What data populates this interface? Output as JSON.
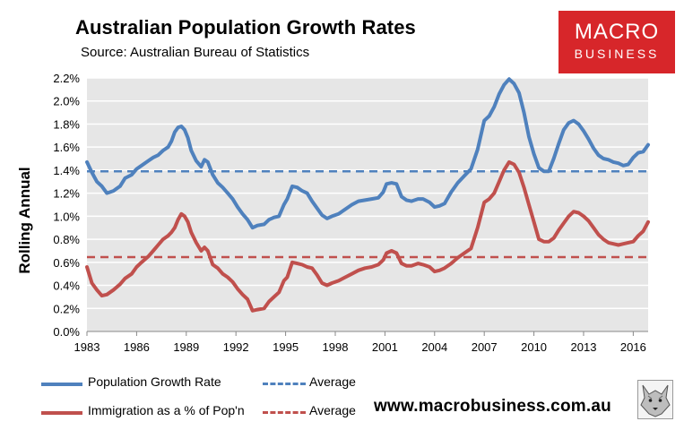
{
  "header": {
    "title": "Australian Population Growth Rates",
    "source": "Source: Australian Bureau of Statistics"
  },
  "logo": {
    "line1": "MACRO",
    "line2": "BUSINESS",
    "color": "#d7262a"
  },
  "footer": {
    "website": "www.macrobusiness.com.au"
  },
  "legend": {
    "population_label": "Population Growth Rate",
    "population_avg_label": "Average",
    "immigration_label": "Immigration as a % of Pop'n",
    "immigration_avg_label": "Average"
  },
  "colors": {
    "population": "#4f81bd",
    "immigration": "#c0504d",
    "plot_bg": "#e6e6e6"
  },
  "chart_data": {
    "type": "line",
    "title": "Australian Population Growth Rates",
    "ylabel": "Rolling Annual",
    "xlabel": "",
    "ylim": [
      0,
      2.2
    ],
    "xlim": [
      1983,
      2016.9
    ],
    "y_ticks": [
      0,
      0.2,
      0.4,
      0.6,
      0.8,
      1.0,
      1.2,
      1.4,
      1.6,
      1.8,
      2.0,
      2.2
    ],
    "y_tick_labels": [
      "0.0%",
      "0.2%",
      "0.4%",
      "0.6%",
      "0.8%",
      "1.0%",
      "1.2%",
      "1.4%",
      "1.6%",
      "1.8%",
      "2.0%",
      "2.2%"
    ],
    "x_ticks": [
      1983,
      1986,
      1989,
      1992,
      1995,
      1998,
      2001,
      2004,
      2007,
      2010,
      2013,
      2016
    ],
    "x_tick_labels": [
      "1983",
      "1986",
      "1989",
      "1992",
      "1995",
      "1998",
      "2001",
      "2004",
      "2007",
      "2010",
      "2013",
      "2016"
    ],
    "grid": true,
    "series": [
      {
        "name": "Population Growth Rate",
        "color": "#4f81bd",
        "average": 1.39,
        "points": [
          [
            1983.0,
            1.47
          ],
          [
            1983.3,
            1.38
          ],
          [
            1983.6,
            1.3
          ],
          [
            1983.9,
            1.26
          ],
          [
            1984.2,
            1.2
          ],
          [
            1984.6,
            1.22
          ],
          [
            1985.0,
            1.26
          ],
          [
            1985.3,
            1.33
          ],
          [
            1985.7,
            1.36
          ],
          [
            1986.0,
            1.41
          ],
          [
            1986.3,
            1.44
          ],
          [
            1986.7,
            1.48
          ],
          [
            1987.0,
            1.51
          ],
          [
            1987.3,
            1.53
          ],
          [
            1987.6,
            1.57
          ],
          [
            1987.9,
            1.6
          ],
          [
            1988.1,
            1.65
          ],
          [
            1988.3,
            1.73
          ],
          [
            1988.5,
            1.77
          ],
          [
            1988.7,
            1.78
          ],
          [
            1988.9,
            1.75
          ],
          [
            1989.1,
            1.68
          ],
          [
            1989.3,
            1.57
          ],
          [
            1989.6,
            1.48
          ],
          [
            1989.9,
            1.43
          ],
          [
            1990.1,
            1.49
          ],
          [
            1990.3,
            1.47
          ],
          [
            1990.6,
            1.36
          ],
          [
            1990.9,
            1.29
          ],
          [
            1991.2,
            1.25
          ],
          [
            1991.5,
            1.2
          ],
          [
            1991.8,
            1.15
          ],
          [
            1992.1,
            1.08
          ],
          [
            1992.4,
            1.02
          ],
          [
            1992.7,
            0.97
          ],
          [
            1993.0,
            0.9
          ],
          [
            1993.3,
            0.92
          ],
          [
            1993.7,
            0.93
          ],
          [
            1994.0,
            0.97
          ],
          [
            1994.3,
            0.99
          ],
          [
            1994.6,
            1.0
          ],
          [
            1994.9,
            1.1
          ],
          [
            1995.1,
            1.15
          ],
          [
            1995.4,
            1.26
          ],
          [
            1995.7,
            1.25
          ],
          [
            1996.0,
            1.22
          ],
          [
            1996.3,
            1.2
          ],
          [
            1996.6,
            1.13
          ],
          [
            1996.9,
            1.07
          ],
          [
            1997.2,
            1.01
          ],
          [
            1997.5,
            0.98
          ],
          [
            1997.8,
            1.0
          ],
          [
            1998.2,
            1.02
          ],
          [
            1998.6,
            1.06
          ],
          [
            1999.0,
            1.1
          ],
          [
            1999.4,
            1.13
          ],
          [
            1999.8,
            1.14
          ],
          [
            2000.2,
            1.15
          ],
          [
            2000.6,
            1.16
          ],
          [
            2000.9,
            1.21
          ],
          [
            2001.1,
            1.28
          ],
          [
            2001.4,
            1.29
          ],
          [
            2001.7,
            1.28
          ],
          [
            2002.0,
            1.17
          ],
          [
            2002.3,
            1.14
          ],
          [
            2002.6,
            1.13
          ],
          [
            2003.0,
            1.15
          ],
          [
            2003.3,
            1.15
          ],
          [
            2003.7,
            1.12
          ],
          [
            2004.0,
            1.08
          ],
          [
            2004.3,
            1.09
          ],
          [
            2004.6,
            1.11
          ],
          [
            2005.0,
            1.21
          ],
          [
            2005.4,
            1.29
          ],
          [
            2005.8,
            1.35
          ],
          [
            2006.2,
            1.41
          ],
          [
            2006.6,
            1.58
          ],
          [
            2007.0,
            1.83
          ],
          [
            2007.3,
            1.87
          ],
          [
            2007.6,
            1.95
          ],
          [
            2007.9,
            2.06
          ],
          [
            2008.2,
            2.14
          ],
          [
            2008.5,
            2.19
          ],
          [
            2008.8,
            2.15
          ],
          [
            2009.1,
            2.07
          ],
          [
            2009.4,
            1.9
          ],
          [
            2009.7,
            1.69
          ],
          [
            2010.0,
            1.54
          ],
          [
            2010.3,
            1.42
          ],
          [
            2010.6,
            1.39
          ],
          [
            2010.9,
            1.39
          ],
          [
            2011.2,
            1.5
          ],
          [
            2011.5,
            1.63
          ],
          [
            2011.8,
            1.75
          ],
          [
            2012.1,
            1.81
          ],
          [
            2012.4,
            1.83
          ],
          [
            2012.7,
            1.8
          ],
          [
            2013.0,
            1.74
          ],
          [
            2013.3,
            1.67
          ],
          [
            2013.6,
            1.59
          ],
          [
            2013.9,
            1.53
          ],
          [
            2014.2,
            1.5
          ],
          [
            2014.5,
            1.49
          ],
          [
            2014.8,
            1.47
          ],
          [
            2015.1,
            1.46
          ],
          [
            2015.4,
            1.44
          ],
          [
            2015.7,
            1.45
          ],
          [
            2016.0,
            1.51
          ],
          [
            2016.3,
            1.55
          ],
          [
            2016.6,
            1.56
          ],
          [
            2016.9,
            1.62
          ]
        ]
      },
      {
        "name": "Immigration as a % of Pop'n",
        "color": "#c0504d",
        "average": 0.645,
        "points": [
          [
            1983.0,
            0.56
          ],
          [
            1983.3,
            0.42
          ],
          [
            1983.6,
            0.36
          ],
          [
            1983.9,
            0.31
          ],
          [
            1984.2,
            0.32
          ],
          [
            1984.6,
            0.36
          ],
          [
            1985.0,
            0.41
          ],
          [
            1985.3,
            0.46
          ],
          [
            1985.7,
            0.5
          ],
          [
            1986.0,
            0.56
          ],
          [
            1986.3,
            0.6
          ],
          [
            1986.7,
            0.65
          ],
          [
            1987.0,
            0.7
          ],
          [
            1987.3,
            0.75
          ],
          [
            1987.6,
            0.8
          ],
          [
            1987.9,
            0.83
          ],
          [
            1988.1,
            0.86
          ],
          [
            1988.3,
            0.9
          ],
          [
            1988.5,
            0.97
          ],
          [
            1988.7,
            1.02
          ],
          [
            1988.9,
            1.0
          ],
          [
            1989.1,
            0.95
          ],
          [
            1989.3,
            0.86
          ],
          [
            1989.6,
            0.77
          ],
          [
            1989.9,
            0.7
          ],
          [
            1990.1,
            0.73
          ],
          [
            1990.3,
            0.7
          ],
          [
            1990.6,
            0.58
          ],
          [
            1990.9,
            0.55
          ],
          [
            1991.2,
            0.5
          ],
          [
            1991.5,
            0.47
          ],
          [
            1991.8,
            0.43
          ],
          [
            1992.1,
            0.37
          ],
          [
            1992.4,
            0.32
          ],
          [
            1992.7,
            0.28
          ],
          [
            1993.0,
            0.18
          ],
          [
            1993.3,
            0.19
          ],
          [
            1993.7,
            0.2
          ],
          [
            1994.0,
            0.26
          ],
          [
            1994.3,
            0.3
          ],
          [
            1994.6,
            0.34
          ],
          [
            1994.9,
            0.44
          ],
          [
            1995.1,
            0.47
          ],
          [
            1995.4,
            0.6
          ],
          [
            1995.7,
            0.59
          ],
          [
            1996.0,
            0.58
          ],
          [
            1996.3,
            0.56
          ],
          [
            1996.6,
            0.55
          ],
          [
            1996.9,
            0.49
          ],
          [
            1997.2,
            0.42
          ],
          [
            1997.5,
            0.4
          ],
          [
            1997.8,
            0.42
          ],
          [
            1998.2,
            0.44
          ],
          [
            1998.6,
            0.47
          ],
          [
            1999.0,
            0.5
          ],
          [
            1999.4,
            0.53
          ],
          [
            1999.8,
            0.55
          ],
          [
            2000.2,
            0.56
          ],
          [
            2000.6,
            0.58
          ],
          [
            2000.9,
            0.62
          ],
          [
            2001.1,
            0.68
          ],
          [
            2001.4,
            0.7
          ],
          [
            2001.7,
            0.68
          ],
          [
            2002.0,
            0.59
          ],
          [
            2002.3,
            0.57
          ],
          [
            2002.6,
            0.57
          ],
          [
            2003.0,
            0.59
          ],
          [
            2003.3,
            0.58
          ],
          [
            2003.7,
            0.56
          ],
          [
            2004.0,
            0.52
          ],
          [
            2004.3,
            0.53
          ],
          [
            2004.6,
            0.55
          ],
          [
            2005.0,
            0.59
          ],
          [
            2005.4,
            0.64
          ],
          [
            2005.8,
            0.68
          ],
          [
            2006.2,
            0.72
          ],
          [
            2006.6,
            0.9
          ],
          [
            2007.0,
            1.12
          ],
          [
            2007.3,
            1.15
          ],
          [
            2007.6,
            1.2
          ],
          [
            2007.9,
            1.3
          ],
          [
            2008.2,
            1.4
          ],
          [
            2008.5,
            1.47
          ],
          [
            2008.8,
            1.45
          ],
          [
            2009.1,
            1.38
          ],
          [
            2009.4,
            1.25
          ],
          [
            2009.7,
            1.1
          ],
          [
            2010.0,
            0.95
          ],
          [
            2010.3,
            0.8
          ],
          [
            2010.6,
            0.78
          ],
          [
            2010.9,
            0.78
          ],
          [
            2011.2,
            0.81
          ],
          [
            2011.5,
            0.88
          ],
          [
            2011.8,
            0.94
          ],
          [
            2012.1,
            1.0
          ],
          [
            2012.4,
            1.04
          ],
          [
            2012.7,
            1.03
          ],
          [
            2013.0,
            1.0
          ],
          [
            2013.3,
            0.96
          ],
          [
            2013.6,
            0.9
          ],
          [
            2013.9,
            0.84
          ],
          [
            2014.2,
            0.8
          ],
          [
            2014.5,
            0.77
          ],
          [
            2014.8,
            0.76
          ],
          [
            2015.1,
            0.75
          ],
          [
            2015.4,
            0.76
          ],
          [
            2015.7,
            0.77
          ],
          [
            2016.0,
            0.78
          ],
          [
            2016.3,
            0.83
          ],
          [
            2016.6,
            0.87
          ],
          [
            2016.9,
            0.95
          ]
        ]
      }
    ]
  }
}
